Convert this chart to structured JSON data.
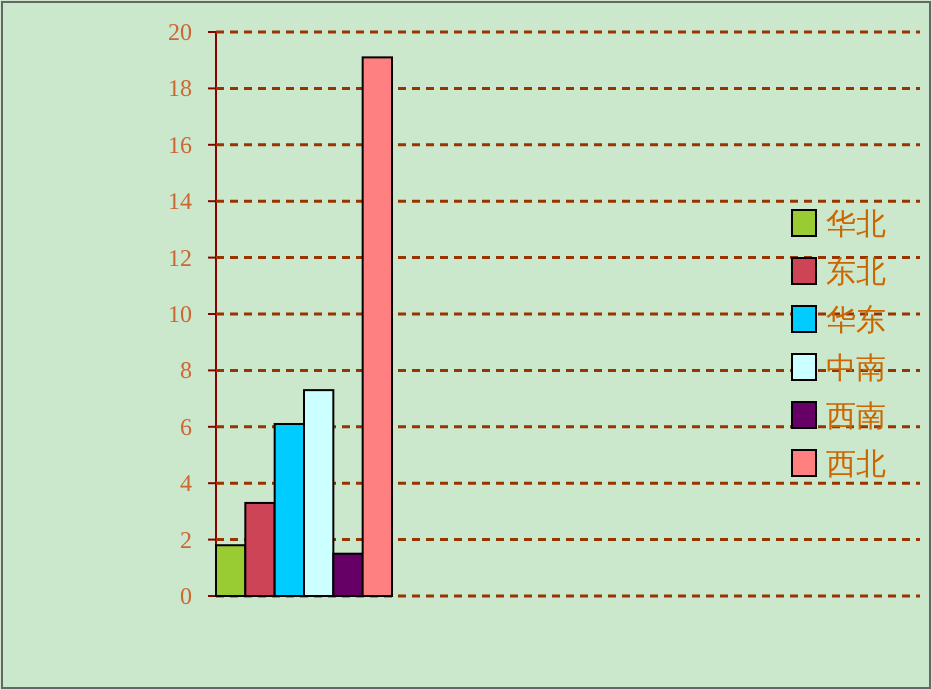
{
  "chart_data": {
    "type": "bar",
    "categories": [
      null,
      null,
      null,
      null
    ],
    "series": [
      {
        "name": "华北",
        "color": "#99cc33",
        "values": [
          1.8,
          0,
          0,
          0
        ]
      },
      {
        "name": "东北",
        "color": "#cc4455",
        "values": [
          3.3,
          0,
          0,
          0
        ]
      },
      {
        "name": "华东",
        "color": "#00ccff",
        "values": [
          6.1,
          0,
          0,
          0
        ]
      },
      {
        "name": "中南",
        "color": "#ccffff",
        "values": [
          7.3,
          0,
          0,
          0
        ]
      },
      {
        "name": "西南",
        "color": "#660066",
        "values": [
          1.5,
          0,
          0,
          0
        ]
      },
      {
        "name": "西北",
        "color": "#ff8080",
        "values": [
          19.1,
          0,
          0,
          0
        ]
      }
    ],
    "ylim": [
      0,
      20
    ],
    "yticks": [
      0,
      2,
      4,
      6,
      8,
      10,
      12,
      14,
      16,
      18,
      20
    ],
    "grid": "y",
    "legend": "right"
  }
}
